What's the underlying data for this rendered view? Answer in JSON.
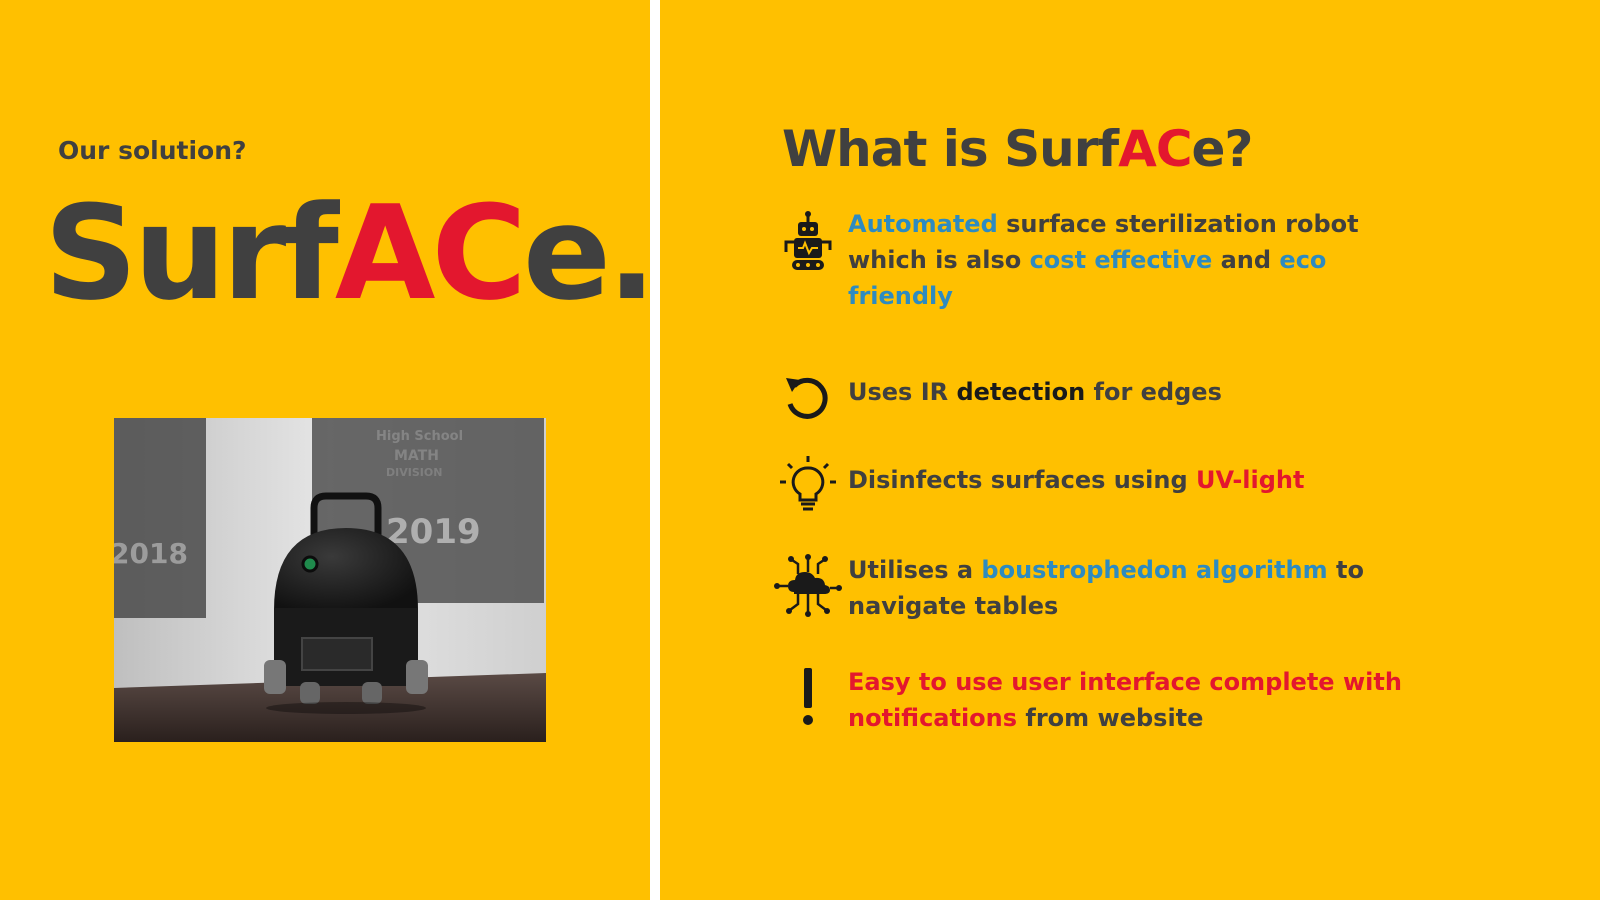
{
  "left": {
    "kicker": "Our solution?",
    "logo": {
      "part1": "Surf",
      "part2": "AC",
      "part3": "e",
      "dot": "."
    },
    "photo": {
      "banner_text_1": "High School",
      "banner_text_2": "MATH",
      "banner_text_3": "DIVISION",
      "banner_text_4": "2019",
      "banner_text_5": "2018"
    }
  },
  "right": {
    "title": {
      "part1": "What is Surf",
      "part2": "AC",
      "part3": "e?"
    },
    "features": [
      {
        "icon": "robot-icon",
        "t1": "Automated",
        "t2": " surface sterilization robot which is also ",
        "t3": "cost effective",
        "t4": " and ",
        "t5": "eco friendly"
      },
      {
        "icon": "rotate-icon",
        "t1": "Uses IR ",
        "t2": "detection",
        "t3": " for edges"
      },
      {
        "icon": "lightbulb-icon",
        "t1": "Disinfects surfaces using ",
        "t2": "UV-light"
      },
      {
        "icon": "cloud-network-icon",
        "t1": "Utilises a ",
        "t2": "boustrophedon algorithm",
        "t3": " to navigate tables"
      },
      {
        "icon": "exclamation-icon",
        "t1": "Easy to use user interface complete with notifications",
        "t2": " from website"
      }
    ]
  },
  "colors": {
    "background": "#FFC000",
    "dark_text": "#404040",
    "accent_red": "#E3172E",
    "accent_blue": "#2E8BC0",
    "divider": "#FFFFFF"
  }
}
